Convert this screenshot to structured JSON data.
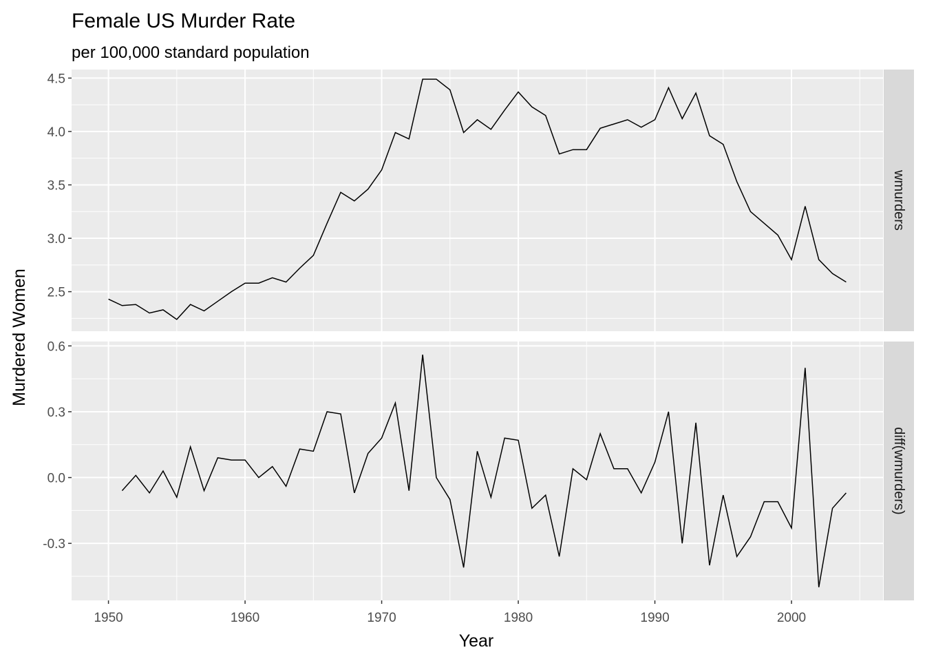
{
  "chart_data": {
    "type": "line",
    "title": "Female US Murder Rate",
    "subtitle": "per 100,000 standard population",
    "xlabel": "Year",
    "ylabel": "Murdered Women",
    "grid": true,
    "x_ticks": [
      "1950",
      "1960",
      "1970",
      "1980",
      "1990",
      "2000"
    ],
    "xlim": [
      1947.3,
      2006.7
    ],
    "panels": [
      {
        "strip_label": "wmurders",
        "y_ticks": [
          "2.5",
          "3.0",
          "3.5",
          "4.0",
          "4.5"
        ],
        "ylim": [
          2.13,
          4.58
        ],
        "series": [
          {
            "x": [
              1950,
              1951,
              1952,
              1953,
              1954,
              1955,
              1956,
              1957,
              1958,
              1959,
              1960,
              1961,
              1962,
              1963,
              1964,
              1965,
              1966,
              1967,
              1968,
              1969,
              1970,
              1971,
              1972,
              1973,
              1974,
              1975,
              1976,
              1977,
              1978,
              1979,
              1980,
              1981,
              1982,
              1983,
              1984,
              1985,
              1986,
              1987,
              1988,
              1989,
              1990,
              1991,
              1992,
              1993,
              1994,
              1995,
              1996,
              1997,
              1998,
              1999,
              2000,
              2001,
              2002,
              2003,
              2004
            ],
            "values": [
              2.43,
              2.37,
              2.38,
              2.3,
              2.33,
              2.24,
              2.38,
              2.32,
              2.41,
              2.5,
              2.58,
              2.58,
              2.63,
              2.59,
              2.72,
              2.84,
              3.14,
              3.43,
              3.35,
              3.46,
              3.64,
              3.99,
              3.93,
              4.49,
              4.49,
              4.39,
              3.99,
              4.11,
              4.02,
              4.2,
              4.37,
              4.23,
              4.15,
              3.79,
              3.83,
              3.83,
              4.03,
              4.07,
              4.11,
              4.04,
              4.11,
              4.41,
              4.12,
              4.36,
              3.96,
              3.88,
              3.53,
              3.25,
              3.14,
              3.03,
              2.8,
              3.3,
              2.8,
              2.67,
              2.59
            ]
          }
        ]
      },
      {
        "strip_label": "diff(wmurders)",
        "y_ticks": [
          "-0.3",
          "0.0",
          "0.3",
          "0.6"
        ],
        "ylim": [
          -0.56,
          0.62
        ],
        "series": [
          {
            "x": [
              1951,
              1952,
              1953,
              1954,
              1955,
              1956,
              1957,
              1958,
              1959,
              1960,
              1961,
              1962,
              1963,
              1964,
              1965,
              1966,
              1967,
              1968,
              1969,
              1970,
              1971,
              1972,
              1973,
              1974,
              1975,
              1976,
              1977,
              1978,
              1979,
              1980,
              1981,
              1982,
              1983,
              1984,
              1985,
              1986,
              1987,
              1988,
              1989,
              1990,
              1991,
              1992,
              1993,
              1994,
              1995,
              1996,
              1997,
              1998,
              1999,
              2000,
              2001,
              2002,
              2003,
              2004
            ],
            "values": [
              -0.06,
              0.01,
              -0.07,
              0.03,
              -0.09,
              0.14,
              -0.06,
              0.09,
              0.08,
              0.08,
              0.0,
              0.05,
              -0.04,
              0.13,
              0.12,
              0.3,
              0.29,
              -0.07,
              0.11,
              0.18,
              0.34,
              -0.06,
              0.56,
              0.0,
              -0.1,
              -0.41,
              0.12,
              -0.09,
              0.18,
              0.17,
              -0.14,
              -0.08,
              -0.36,
              0.04,
              -0.01,
              0.2,
              0.04,
              0.04,
              -0.07,
              0.07,
              0.3,
              -0.3,
              0.25,
              -0.4,
              -0.08,
              -0.36,
              -0.27,
              -0.11,
              -0.11,
              -0.23,
              0.5,
              -0.5,
              -0.14,
              -0.07
            ]
          }
        ]
      }
    ]
  }
}
